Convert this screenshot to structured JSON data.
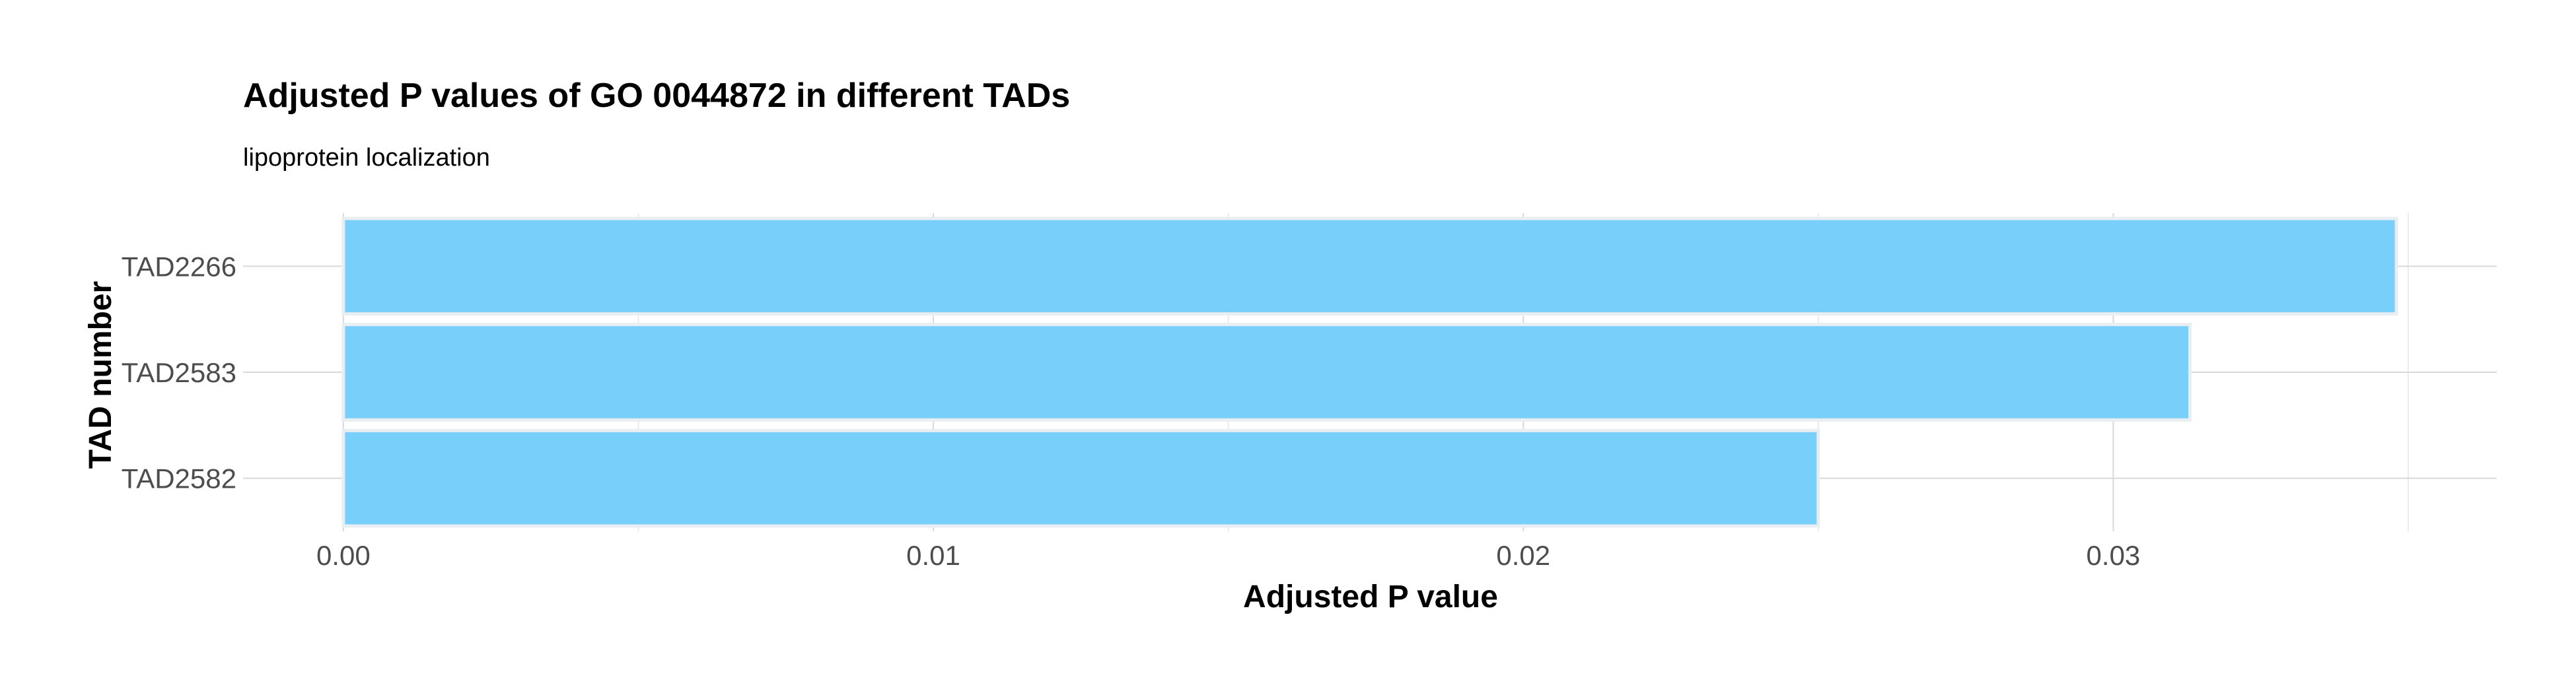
{
  "chart_data": {
    "type": "bar",
    "orientation": "horizontal",
    "title": "Adjusted P values of GO 0044872 in different TADs",
    "subtitle": "lipoprotein localization",
    "xlabel": "Adjusted P value",
    "ylabel": "TAD number",
    "categories": [
      "TAD2266",
      "TAD2583",
      "TAD2582"
    ],
    "values": [
      0.0348,
      0.0313,
      0.025
    ],
    "xlim": [
      -0.0017,
      0.0365
    ],
    "x_ticks": [
      0.0,
      0.01,
      0.02,
      0.03
    ],
    "x_tick_labels": [
      "0.00",
      "0.01",
      "0.02",
      "0.03"
    ],
    "grid": true,
    "legend": "none",
    "bar_color": "#74cefa"
  }
}
